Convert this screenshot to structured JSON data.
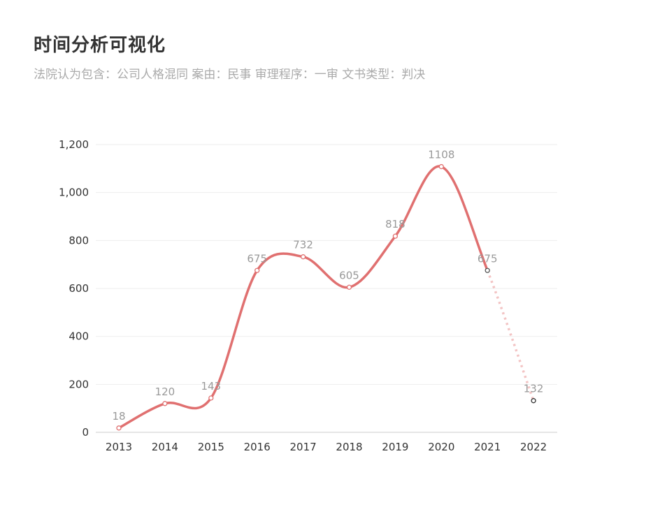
{
  "header": {
    "title": "时间分析可视化",
    "subtitle": "法院认为包含：公司人格混同  案由：民事  审理程序：一审  文书类型：判决"
  },
  "colors": {
    "line": "#e07070",
    "line_projected": "#f3c4c4",
    "grid": "#eeeeee",
    "axis": "#cccccc",
    "point_fill": "#ffffff",
    "last_point_stroke": "#333333"
  },
  "chart_data": {
    "type": "line",
    "smooth": true,
    "categories": [
      "2013",
      "2014",
      "2015",
      "2016",
      "2017",
      "2018",
      "2019",
      "2020",
      "2021",
      "2022"
    ],
    "values": [
      18,
      120,
      143,
      675,
      732,
      605,
      818,
      1108,
      675,
      132
    ],
    "data_labels": [
      "18",
      "120",
      "143",
      "675",
      "732",
      "605",
      "818",
      "1108",
      "675",
      "132"
    ],
    "dashed_from_index": 8,
    "ylim": [
      0,
      1200
    ],
    "yticks": [
      0,
      200,
      400,
      600,
      800,
      1000,
      1200
    ],
    "ytick_labels": [
      "0",
      "200",
      "400",
      "600",
      "800",
      "1,000",
      "1,200"
    ],
    "grid": true
  }
}
